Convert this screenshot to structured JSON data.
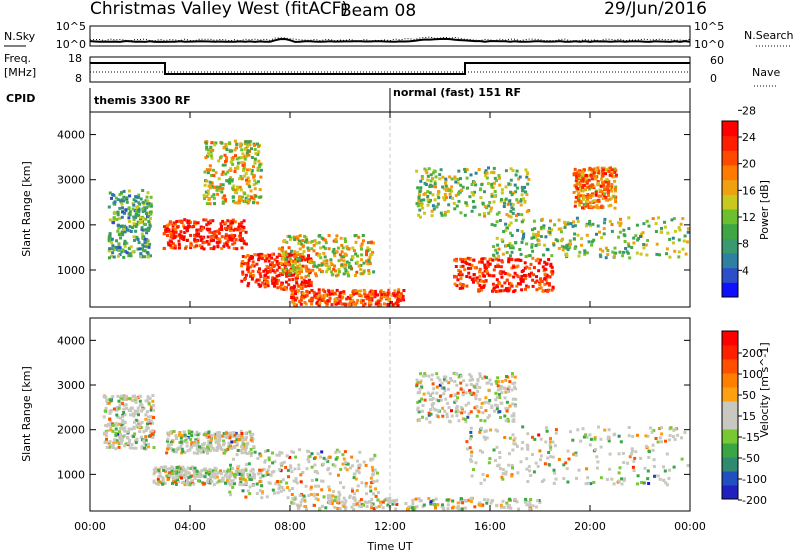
{
  "header": {
    "station": "Christmas Valley West (fitACF)",
    "beam": "Beam 08",
    "date": "29/Jun/2016"
  },
  "left_labels": {
    "nsky": "N.Sky",
    "freq_line1": "Freq.",
    "freq_line2": "[MHz]",
    "cpid": "CPID"
  },
  "right_labels": {
    "nsearch": "N.Search",
    "nave": "Nave"
  },
  "noise_panel": {
    "left_ticks": [
      "10^5",
      "10^0"
    ],
    "right_ticks": [
      "10^5",
      "10^0"
    ]
  },
  "freq_panel": {
    "left_ticks": [
      "18",
      "8"
    ],
    "right_ticks": [
      "60",
      "0"
    ]
  },
  "cpid_segments": [
    {
      "label": "themis 3300 RF",
      "start_hour": 0,
      "end_hour": 12
    },
    {
      "label": "normal (fast) 151 RF",
      "start_hour": 12,
      "end_hour": 24
    }
  ],
  "chart_data": [
    {
      "type": "heatmap",
      "title": "",
      "ylabel": "Slant Range [km]",
      "xlim": [
        0,
        24
      ],
      "ylim": [
        180,
        4500
      ],
      "yticks": [
        "1000",
        "2000",
        "3000",
        "4000"
      ],
      "colorbar": {
        "label": "Power [dB]",
        "tick_labels": [
          "4",
          "8",
          "12",
          "16",
          "20",
          "24",
          "28"
        ],
        "colors": [
          "#1010ff",
          "#2c4ec8",
          "#2f7fa0",
          "#3a9a6e",
          "#40a544",
          "#6cc02e",
          "#c8c81e",
          "#f0a010",
          "#ff7a00",
          "#ff4800",
          "#ff1e00",
          "#ff0000"
        ]
      },
      "echo_regions": [
        {
          "t0": 0.7,
          "t1": 2.4,
          "r0": 1300,
          "r1": 2800,
          "level": 0.35
        },
        {
          "t0": 2.9,
          "t1": 6.2,
          "r0": 1500,
          "r1": 2150,
          "level": 0.9
        },
        {
          "t0": 4.5,
          "t1": 6.8,
          "r0": 2500,
          "r1": 3900,
          "level": 0.55
        },
        {
          "t0": 6.0,
          "t1": 8.8,
          "r0": 600,
          "r1": 1400,
          "level": 0.9
        },
        {
          "t0": 7.5,
          "t1": 11.3,
          "r0": 900,
          "r1": 1800,
          "level": 0.55
        },
        {
          "t0": 8.0,
          "t1": 12.5,
          "r0": 250,
          "r1": 600,
          "level": 0.8
        },
        {
          "t0": 13.0,
          "t1": 17.5,
          "r0": 2200,
          "r1": 3300,
          "level": 0.45
        },
        {
          "t0": 14.5,
          "t1": 18.5,
          "r0": 550,
          "r1": 1300,
          "level": 0.9
        },
        {
          "t0": 16.0,
          "t1": 24.0,
          "r0": 1300,
          "r1": 2200,
          "level": 0.45
        },
        {
          "t0": 19.3,
          "t1": 21.0,
          "r0": 2400,
          "r1": 3300,
          "level": 0.7
        }
      ]
    },
    {
      "type": "heatmap",
      "title": "",
      "ylabel": "Slant Range [km]",
      "xlabel": "Time UT",
      "xlim": [
        0,
        24
      ],
      "ylim": [
        180,
        4500
      ],
      "xticks": [
        "00:00",
        "04:00",
        "08:00",
        "12:00",
        "16:00",
        "20:00",
        "00:00"
      ],
      "yticks": [
        "1000",
        "2000",
        "3000",
        "4000"
      ],
      "colorbar": {
        "label": "Velocity [m s^-1]",
        "tick_labels": [
          "200",
          "100",
          "50",
          "15",
          "-15",
          "-50",
          "-100",
          "-200"
        ],
        "colors": [
          "#2020c0",
          "#2050c0",
          "#2f8a70",
          "#3aa544",
          "#78c832",
          "#c8c8c0",
          "#c8c8c0",
          "#ffa010",
          "#ff8000",
          "#ff5000",
          "#ff2000",
          "#ff0000"
        ]
      },
      "echo_regions": [
        {
          "t0": 0.5,
          "t1": 2.5,
          "r0": 1600,
          "r1": 2800,
          "level": 0.45
        },
        {
          "t0": 3.0,
          "t1": 6.5,
          "r0": 1500,
          "r1": 2000,
          "level": 0.5
        },
        {
          "t0": 2.5,
          "t1": 6.5,
          "r0": 800,
          "r1": 1200,
          "level": 0.3
        },
        {
          "t0": 5.5,
          "t1": 11.5,
          "r0": 500,
          "r1": 1600,
          "level": 0.65
        },
        {
          "t0": 8.0,
          "t1": 18.0,
          "r0": 200,
          "r1": 500,
          "level": 0.7
        },
        {
          "t0": 13.0,
          "t1": 17.0,
          "r0": 2200,
          "r1": 3300,
          "level": 0.5
        },
        {
          "t0": 15.0,
          "t1": 24.0,
          "r0": 800,
          "r1": 2100,
          "level": 0.5
        }
      ]
    }
  ]
}
